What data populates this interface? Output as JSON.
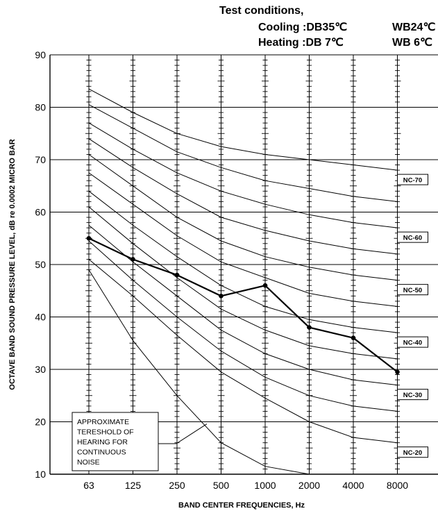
{
  "header": {
    "title": "Test conditions,",
    "cooling_label": "Cooling :DB35℃",
    "cooling_wb": "WB24℃",
    "heating_label": "Heating :DB 7℃",
    "heating_wb": "WB 6℃"
  },
  "chart_data": {
    "type": "line",
    "categories": [
      "63",
      "125",
      "250",
      "500",
      "1000",
      "2000",
      "4000",
      "8000"
    ],
    "xlabel": "BAND CENTER FREQUENCIES, Hz",
    "ylabel": "OCTAVE BAND SOUND PRESSURE LEVEL, dB re 0.0002 MICRO BAR",
    "ylim": [
      10,
      90
    ],
    "yticks": [
      10,
      20,
      30,
      40,
      50,
      60,
      70,
      80,
      90
    ],
    "grid": true,
    "measured": {
      "values": [
        55,
        51,
        48,
        44,
        46,
        38,
        36,
        29.5
      ],
      "color": "#000000"
    },
    "nc_curves": [
      {
        "label": "NC-70",
        "values": [
          83.5,
          79,
          75,
          72.5,
          71,
          70,
          69,
          68
        ]
      },
      {
        "label": "",
        "values": [
          80.5,
          76,
          71.5,
          68.5,
          66,
          64.5,
          63,
          62
        ]
      },
      {
        "label": "NC-60",
        "values": [
          77,
          72,
          67.5,
          64,
          61.5,
          59.5,
          58,
          57
        ]
      },
      {
        "label": "",
        "values": [
          74,
          68.5,
          63.5,
          59,
          56.5,
          54.5,
          53,
          52
        ]
      },
      {
        "label": "NC-50",
        "values": [
          71,
          65,
          59,
          54.5,
          51.5,
          49.5,
          48,
          47
        ]
      },
      {
        "label": "",
        "values": [
          67.5,
          61.5,
          55.5,
          50.5,
          47.5,
          44.5,
          43,
          42
        ]
      },
      {
        "label": "NC-40",
        "values": [
          64,
          57.5,
          51.5,
          46,
          42,
          39.5,
          38,
          37
        ]
      },
      {
        "label": "",
        "values": [
          61,
          54,
          47.5,
          41.5,
          37.5,
          34.5,
          33,
          32
        ]
      },
      {
        "label": "NC-30",
        "values": [
          57.5,
          50.5,
          44,
          37.5,
          33,
          30,
          28,
          27
        ]
      },
      {
        "label": "",
        "values": [
          54.5,
          47,
          40,
          33.5,
          28.5,
          25,
          23,
          22
        ]
      },
      {
        "label": "NC-20",
        "values": [
          51,
          44,
          36.5,
          29.5,
          24.5,
          20,
          17,
          16
        ]
      }
    ],
    "threshold_curve": {
      "values": [
        49,
        35.5,
        25,
        16,
        11.5,
        10
      ]
    },
    "threshold_note": [
      "APPROXIMATE",
      "TERESHOLD OF",
      "HEARING FOR",
      "CONTINUOUS",
      "NOISE"
    ]
  }
}
